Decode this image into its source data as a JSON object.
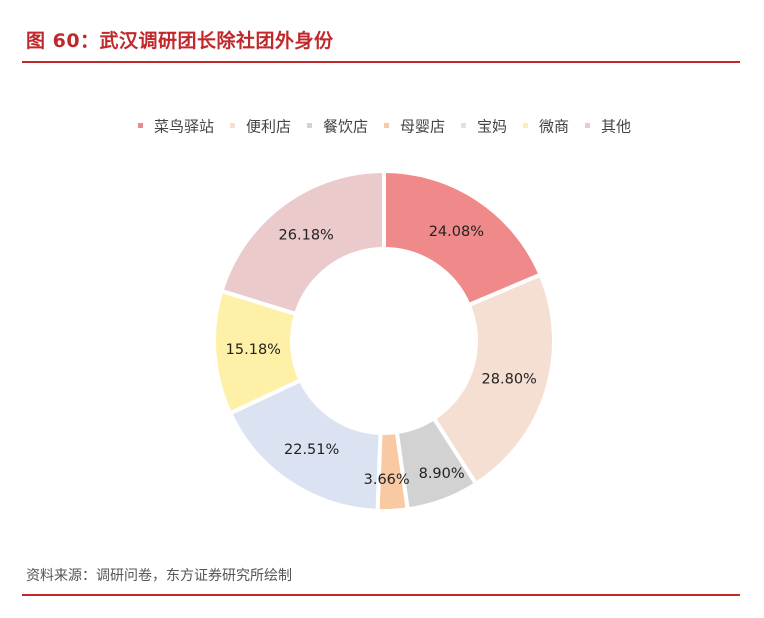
{
  "header": {
    "title": "图 60：武汉调研团长除社团外身份"
  },
  "footer": {
    "source": "资料来源：调研问卷，东方证券研究所绘制"
  },
  "chart_data": {
    "type": "pie",
    "variant": "donut",
    "title": "图 60：武汉调研团长除社团外身份",
    "legend_position": "top",
    "slices": [
      {
        "name": "菜鸟驿站",
        "value": 24.08,
        "label": "24.08%",
        "color": "#f08a8a"
      },
      {
        "name": "便利店",
        "value": 28.8,
        "label": "28.80%",
        "color": "#f5dfd2"
      },
      {
        "name": "餐饮店",
        "value": 8.9,
        "label": "8.90%",
        "color": "#d2d2d2"
      },
      {
        "name": "母婴店",
        "value": 3.66,
        "label": "3.66%",
        "color": "#f8c9a2"
      },
      {
        "name": "宝妈",
        "value": 22.51,
        "label": "22.51%",
        "color": "#dbe3f2"
      },
      {
        "name": "微商",
        "value": 15.18,
        "label": "15.18%",
        "color": "#fff0a8"
      },
      {
        "name": "其他",
        "value": 26.18,
        "label": "26.18%",
        "color": "#ebcacb"
      }
    ]
  }
}
